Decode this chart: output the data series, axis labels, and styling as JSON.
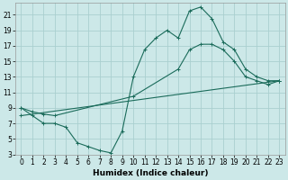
{
  "xlabel": "Humidex (Indice chaleur)",
  "bg_color": "#cce8e8",
  "grid_color": "#aacfcf",
  "line_color": "#1a6b5a",
  "xlim": [
    -0.5,
    23.5
  ],
  "ylim": [
    3,
    22.5
  ],
  "xticks": [
    0,
    1,
    2,
    3,
    4,
    5,
    6,
    7,
    8,
    9,
    10,
    11,
    12,
    13,
    14,
    15,
    16,
    17,
    18,
    19,
    20,
    21,
    22,
    23
  ],
  "yticks": [
    3,
    5,
    7,
    9,
    11,
    13,
    15,
    17,
    19,
    21
  ],
  "curve_main": {
    "x": [
      0,
      1,
      2,
      3,
      4,
      5,
      6,
      7,
      8,
      9,
      10,
      11,
      12,
      13,
      14,
      15,
      16,
      17,
      18,
      19,
      20,
      21,
      22,
      23
    ],
    "y": [
      9,
      8,
      7,
      7,
      6.5,
      4.5,
      4,
      3.5,
      3.2,
      6,
      13,
      16.5,
      18,
      19,
      18,
      21.5,
      22,
      20.5,
      17.5,
      16.5,
      14,
      13,
      12.5,
      12.5
    ]
  },
  "curve_upper": {
    "x": [
      0,
      1,
      2,
      3,
      10,
      14,
      15,
      16,
      17,
      18,
      19,
      20,
      21,
      22,
      23
    ],
    "y": [
      9,
      8.5,
      8.2,
      8,
      10.5,
      14,
      16.5,
      17.2,
      17.2,
      16.5,
      15,
      13,
      12.5,
      12.0,
      12.5
    ]
  },
  "curve_lower": {
    "x": [
      0,
      23
    ],
    "y": [
      8,
      12.5
    ]
  },
  "tick_fontsize": 5.5,
  "xlabel_fontsize": 6.5
}
